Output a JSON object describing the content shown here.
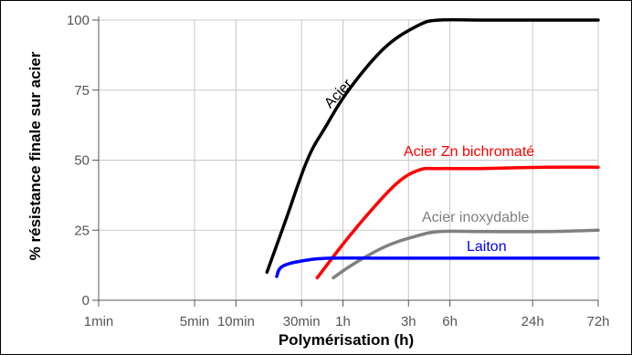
{
  "chart_data": {
    "type": "line",
    "title": "",
    "xlabel": "Polymérisation (h)",
    "ylabel": "% résistance finale sur acier",
    "x_scale": "log",
    "x_unit": "h",
    "xlim": [
      0.0167,
      72
    ],
    "ylim": [
      0,
      100
    ],
    "grid": true,
    "legend": "none (labels placed on curves)",
    "x_ticks": [
      {
        "value": 0.0167,
        "label": "1min"
      },
      {
        "value": 0.0833,
        "label": "5min"
      },
      {
        "value": 0.1667,
        "label": "10min"
      },
      {
        "value": 0.5,
        "label": "30min"
      },
      {
        "value": 1,
        "label": "1h"
      },
      {
        "value": 3,
        "label": "3h"
      },
      {
        "value": 6,
        "label": "6h"
      },
      {
        "value": 24,
        "label": "24h"
      },
      {
        "value": 72,
        "label": "72h"
      }
    ],
    "y_ticks": [
      {
        "value": 0,
        "label": "0"
      },
      {
        "value": 25,
        "label": "25"
      },
      {
        "value": 50,
        "label": "50"
      },
      {
        "value": 75,
        "label": "75"
      },
      {
        "value": 100,
        "label": "100"
      }
    ],
    "series": [
      {
        "name": "Acier",
        "color": "#000000",
        "points": [
          [
            0.28,
            10
          ],
          [
            0.38,
            28
          ],
          [
            0.55,
            50
          ],
          [
            0.75,
            62
          ],
          [
            1.1,
            75
          ],
          [
            2,
            90
          ],
          [
            3.5,
            98
          ],
          [
            5,
            100
          ],
          [
            10,
            100
          ],
          [
            30,
            100
          ],
          [
            72,
            100
          ]
        ]
      },
      {
        "name": "Acier Zn bichromaté",
        "color": "#ff0000",
        "points": [
          [
            0.65,
            8
          ],
          [
            1,
            20
          ],
          [
            1.6,
            32
          ],
          [
            2.5,
            42
          ],
          [
            3.6,
            46.5
          ],
          [
            5,
            47
          ],
          [
            10,
            47
          ],
          [
            30,
            47.5
          ],
          [
            72,
            47.5
          ]
        ]
      },
      {
        "name": "Acier inoxydable",
        "color": "#808080",
        "points": [
          [
            0.85,
            8
          ],
          [
            1.2,
            13
          ],
          [
            2,
            19
          ],
          [
            3.2,
            22.5
          ],
          [
            5,
            24.5
          ],
          [
            10,
            24.5
          ],
          [
            30,
            24.5
          ],
          [
            72,
            25
          ]
        ]
      },
      {
        "name": "Laiton",
        "color": "#0000ff",
        "points": [
          [
            0.33,
            8.5
          ],
          [
            0.36,
            12
          ],
          [
            0.5,
            14
          ],
          [
            0.8,
            15
          ],
          [
            2,
            15
          ],
          [
            10,
            15
          ],
          [
            30,
            15
          ],
          [
            72,
            15
          ]
        ]
      }
    ],
    "series_labels": [
      {
        "text": "Acier",
        "color": "#000000"
      },
      {
        "text": "Acier Zn bichromaté",
        "color": "#ff0000"
      },
      {
        "text": "Acier inoxydable",
        "color": "#808080"
      },
      {
        "text": "Laiton",
        "color": "#0000ff"
      }
    ]
  }
}
